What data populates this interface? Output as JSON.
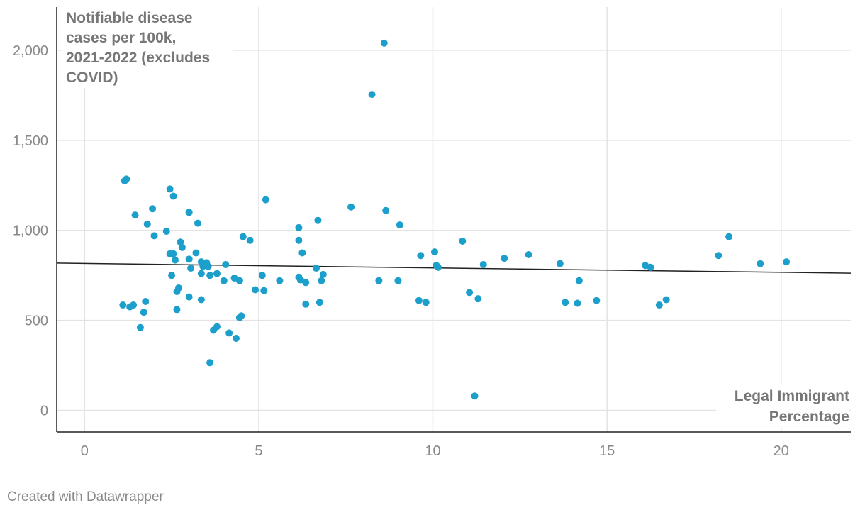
{
  "chart_data": {
    "type": "scatter",
    "ylabel_lines": [
      "Notifiable disease",
      "cases per 100k,",
      "2021-2022 (excludes",
      "COVID)"
    ],
    "xlabel_lines": [
      "Legal Immigrant",
      "Percentage"
    ],
    "xlim": [
      -0.8,
      22
    ],
    "ylim": [
      -120,
      2240
    ],
    "x_ticks": [
      0,
      5,
      10,
      15,
      20
    ],
    "x_tick_labels": [
      "0",
      "5",
      "10",
      "15",
      "20"
    ],
    "y_ticks": [
      0,
      500,
      1000,
      1500,
      2000
    ],
    "y_tick_labels": [
      "0",
      "500",
      "1,000",
      "1,500",
      "2,000"
    ],
    "grid": true,
    "point_color": "#1d9fcb",
    "trend_color": "#222222",
    "trendline": {
      "x": [
        -0.8,
        22
      ],
      "y": [
        818,
        762
      ]
    },
    "points": [
      {
        "x": 1.1,
        "y": 585
      },
      {
        "x": 1.15,
        "y": 1275
      },
      {
        "x": 1.2,
        "y": 1285
      },
      {
        "x": 1.3,
        "y": 575
      },
      {
        "x": 1.4,
        "y": 585
      },
      {
        "x": 1.45,
        "y": 1085
      },
      {
        "x": 1.6,
        "y": 460
      },
      {
        "x": 1.7,
        "y": 545
      },
      {
        "x": 1.75,
        "y": 605
      },
      {
        "x": 1.8,
        "y": 1035
      },
      {
        "x": 1.95,
        "y": 1120
      },
      {
        "x": 2.0,
        "y": 970
      },
      {
        "x": 2.35,
        "y": 995
      },
      {
        "x": 2.45,
        "y": 1230
      },
      {
        "x": 2.45,
        "y": 870
      },
      {
        "x": 2.5,
        "y": 750
      },
      {
        "x": 2.55,
        "y": 1190
      },
      {
        "x": 2.55,
        "y": 870
      },
      {
        "x": 2.6,
        "y": 835
      },
      {
        "x": 2.65,
        "y": 660
      },
      {
        "x": 2.65,
        "y": 560
      },
      {
        "x": 2.7,
        "y": 680
      },
      {
        "x": 2.75,
        "y": 935
      },
      {
        "x": 2.8,
        "y": 905
      },
      {
        "x": 3.0,
        "y": 1100
      },
      {
        "x": 3.0,
        "y": 840
      },
      {
        "x": 3.0,
        "y": 630
      },
      {
        "x": 3.05,
        "y": 790
      },
      {
        "x": 3.2,
        "y": 875
      },
      {
        "x": 3.25,
        "y": 1040
      },
      {
        "x": 3.35,
        "y": 825
      },
      {
        "x": 3.35,
        "y": 760
      },
      {
        "x": 3.35,
        "y": 615
      },
      {
        "x": 3.4,
        "y": 800
      },
      {
        "x": 3.45,
        "y": 810
      },
      {
        "x": 3.5,
        "y": 820
      },
      {
        "x": 3.55,
        "y": 800
      },
      {
        "x": 3.6,
        "y": 750
      },
      {
        "x": 3.6,
        "y": 265
      },
      {
        "x": 3.7,
        "y": 445
      },
      {
        "x": 3.8,
        "y": 760
      },
      {
        "x": 3.8,
        "y": 465
      },
      {
        "x": 4.0,
        "y": 720
      },
      {
        "x": 4.05,
        "y": 810
      },
      {
        "x": 4.15,
        "y": 430
      },
      {
        "x": 4.3,
        "y": 735
      },
      {
        "x": 4.35,
        "y": 400
      },
      {
        "x": 4.45,
        "y": 720
      },
      {
        "x": 4.45,
        "y": 515
      },
      {
        "x": 4.5,
        "y": 525
      },
      {
        "x": 4.55,
        "y": 965
      },
      {
        "x": 4.75,
        "y": 945
      },
      {
        "x": 4.9,
        "y": 670
      },
      {
        "x": 5.1,
        "y": 750
      },
      {
        "x": 5.15,
        "y": 665
      },
      {
        "x": 5.2,
        "y": 1170
      },
      {
        "x": 5.6,
        "y": 720
      },
      {
        "x": 6.15,
        "y": 1015
      },
      {
        "x": 6.15,
        "y": 945
      },
      {
        "x": 6.15,
        "y": 740
      },
      {
        "x": 6.2,
        "y": 725
      },
      {
        "x": 6.25,
        "y": 875
      },
      {
        "x": 6.35,
        "y": 710
      },
      {
        "x": 6.35,
        "y": 590
      },
      {
        "x": 6.65,
        "y": 790
      },
      {
        "x": 6.7,
        "y": 1055
      },
      {
        "x": 6.75,
        "y": 600
      },
      {
        "x": 6.8,
        "y": 720
      },
      {
        "x": 6.85,
        "y": 755
      },
      {
        "x": 7.65,
        "y": 1130
      },
      {
        "x": 8.25,
        "y": 1755
      },
      {
        "x": 8.45,
        "y": 720
      },
      {
        "x": 8.6,
        "y": 2040
      },
      {
        "x": 8.65,
        "y": 1110
      },
      {
        "x": 9.0,
        "y": 720
      },
      {
        "x": 9.05,
        "y": 1030
      },
      {
        "x": 9.6,
        "y": 610
      },
      {
        "x": 9.65,
        "y": 860
      },
      {
        "x": 9.8,
        "y": 600
      },
      {
        "x": 10.05,
        "y": 880
      },
      {
        "x": 10.1,
        "y": 805
      },
      {
        "x": 10.15,
        "y": 795
      },
      {
        "x": 10.85,
        "y": 940
      },
      {
        "x": 11.05,
        "y": 655
      },
      {
        "x": 11.2,
        "y": 80
      },
      {
        "x": 11.3,
        "y": 620
      },
      {
        "x": 11.45,
        "y": 810
      },
      {
        "x": 12.05,
        "y": 845
      },
      {
        "x": 12.75,
        "y": 865
      },
      {
        "x": 13.65,
        "y": 815
      },
      {
        "x": 13.8,
        "y": 600
      },
      {
        "x": 14.15,
        "y": 595
      },
      {
        "x": 14.2,
        "y": 720
      },
      {
        "x": 14.7,
        "y": 610
      },
      {
        "x": 16.1,
        "y": 805
      },
      {
        "x": 16.25,
        "y": 795
      },
      {
        "x": 16.5,
        "y": 585
      },
      {
        "x": 16.7,
        "y": 615
      },
      {
        "x": 18.2,
        "y": 860
      },
      {
        "x": 18.5,
        "y": 965
      },
      {
        "x": 19.4,
        "y": 815
      },
      {
        "x": 20.15,
        "y": 825
      }
    ]
  },
  "footer": {
    "credit": "Created with Datawrapper"
  }
}
